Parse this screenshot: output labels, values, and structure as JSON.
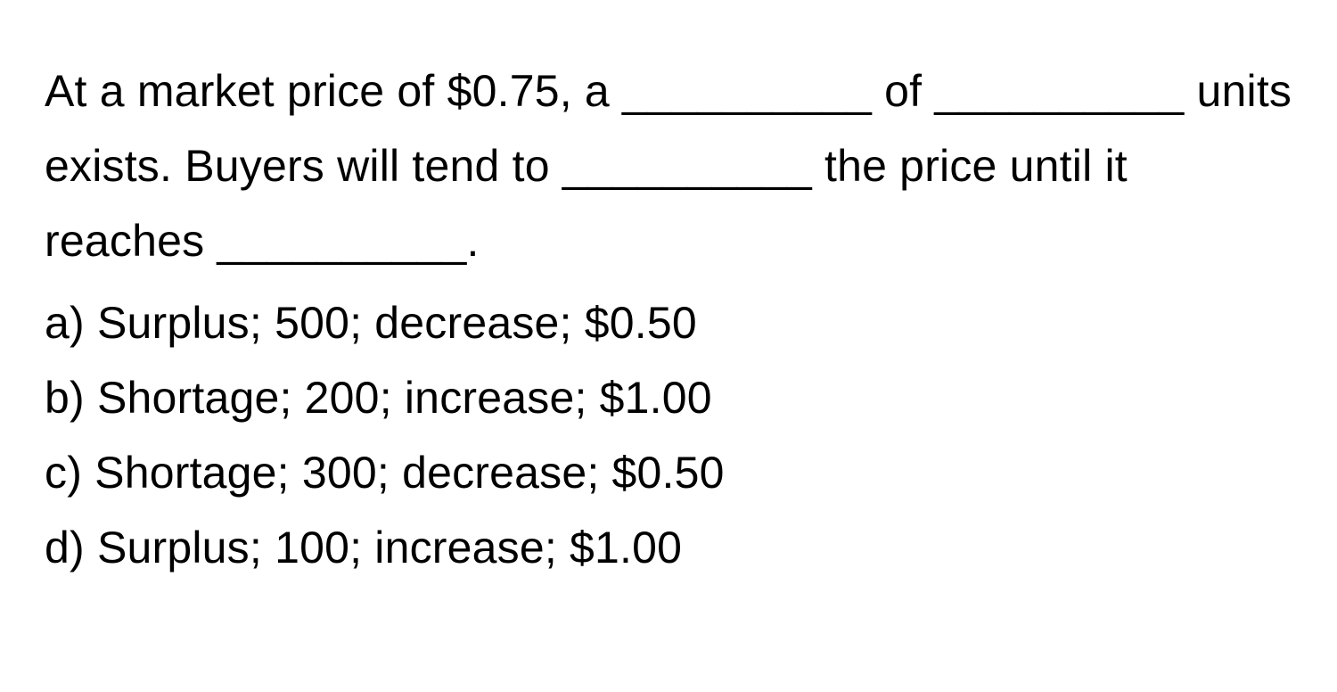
{
  "question": {
    "stem": "At a market price of $0.75, a __________ of __________ units exists. Buyers will tend to __________ the price until it reaches __________.",
    "options": [
      {
        "label": "a)",
        "text": "Surplus; 500; decrease; $0.50"
      },
      {
        "label": "b)",
        "text": "Shortage; 200; increase; $1.00"
      },
      {
        "label": "c)",
        "text": "Shortage; 300; decrease; $0.50"
      },
      {
        "label": "d)",
        "text": "Surplus; 100; increase; $1.00"
      }
    ]
  },
  "styling": {
    "background_color": "#ffffff",
    "text_color": "#000000",
    "font_size": 50,
    "line_height": 1.68,
    "font_family": "-apple-system, BlinkMacSystemFont, Segoe UI, Helvetica, Arial, sans-serif"
  }
}
